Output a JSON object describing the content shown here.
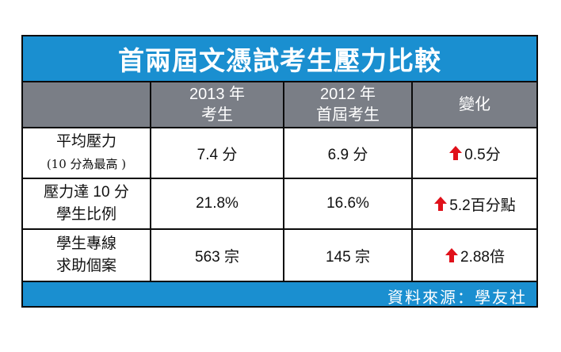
{
  "title": "首兩屆文憑試考生壓力比較",
  "header": {
    "col1_line1": "2013 年",
    "col1_line2": "考生",
    "col2_line1": "2012 年",
    "col2_line2": "首屆考生",
    "col3": "變化"
  },
  "rows": [
    {
      "label_line1": "平均壓力",
      "label_line2": "(10 分為最高 )",
      "v2013": "7.4 分",
      "v2012": "6.9 分",
      "change": "0.5分",
      "change_icon": "red-up-arrow-icon"
    },
    {
      "label_line1": "壓力達 10 分",
      "label_line2": "學生比例",
      "v2013": "21.8%",
      "v2012": "16.6%",
      "change": "5.2百分點",
      "change_icon": "red-up-arrow-icon"
    },
    {
      "label_line1": "學生專線",
      "label_line2": "求助個案",
      "v2013": "563 宗",
      "v2012": "145 宗",
      "change": "2.88倍",
      "change_icon": "red-up-arrow-icon"
    }
  ],
  "source": "資料來源：學友社",
  "colors": {
    "frame_blue": "#1a8fd0",
    "header_gray": "#7a7e86",
    "arrow_red": "#e0111a"
  }
}
